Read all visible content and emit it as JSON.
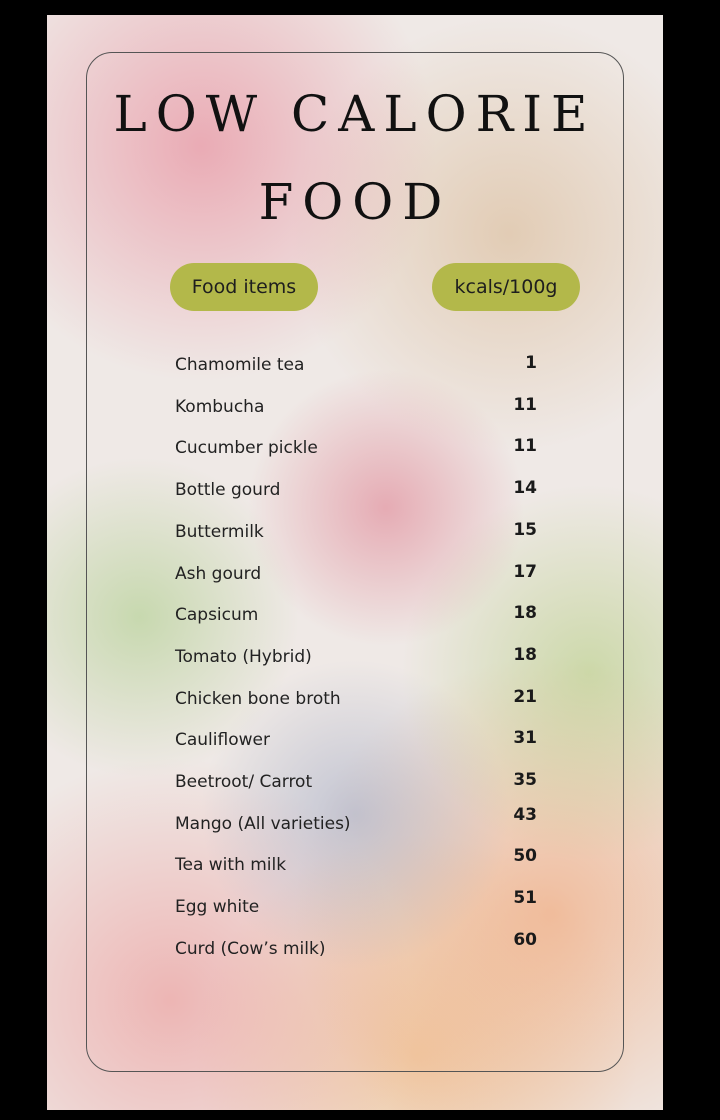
{
  "title_line1": "LOW CALORIE",
  "title_line2": "FOOD",
  "headers": {
    "food": "Food items",
    "kcal": "kcals/100g"
  },
  "accent_color": "#b3b84a",
  "items": [
    {
      "name": "Chamomile tea",
      "kcal": "1"
    },
    {
      "name": "Kombucha",
      "kcal": "11"
    },
    {
      "name": "Cucumber pickle",
      "kcal": "11"
    },
    {
      "name": "Bottle gourd",
      "kcal": "14"
    },
    {
      "name": "Buttermilk",
      "kcal": "15"
    },
    {
      "name": "Ash gourd",
      "kcal": "17"
    },
    {
      "name": "Capsicum",
      "kcal": "18"
    },
    {
      "name": "Tomato (Hybrid)",
      "kcal": "18"
    },
    {
      "name": "Chicken bone broth",
      "kcal": "21"
    },
    {
      "name": "Cauliflower",
      "kcal": "31"
    },
    {
      "name": "Beetroot/ Carrot",
      "kcal": "35"
    },
    {
      "name": "Mango (All varieties)",
      "kcal": "43"
    },
    {
      "name": "Tea with milk",
      "kcal": "50"
    },
    {
      "name": "Egg white",
      "kcal": "51"
    },
    {
      "name": "Curd (Cow’s milk)",
      "kcal": "60"
    }
  ]
}
